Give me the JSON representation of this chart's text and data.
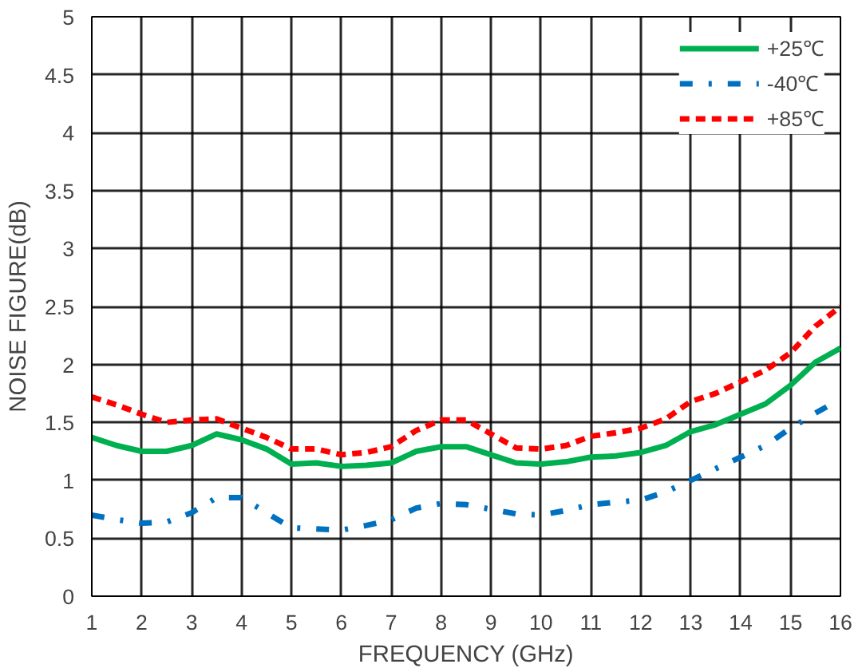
{
  "chart_data": {
    "type": "line",
    "xlabel": "FREQUENCY (GHz)",
    "ylabel": "NOISE FIGURE(dB)",
    "x": [
      1,
      1.5,
      2,
      2.5,
      3,
      3.5,
      4,
      4.5,
      5,
      5.5,
      6,
      6.5,
      7,
      7.5,
      8,
      8.5,
      9,
      9.5,
      10,
      10.5,
      11,
      11.5,
      12,
      12.5,
      13,
      13.5,
      14,
      14.5,
      15,
      15.5,
      16
    ],
    "series": [
      {
        "name": "+25℃",
        "color": "#00b050",
        "line_style": "solid",
        "values": [
          1.37,
          1.3,
          1.25,
          1.25,
          1.3,
          1.4,
          1.35,
          1.27,
          1.14,
          1.15,
          1.12,
          1.13,
          1.15,
          1.25,
          1.29,
          1.29,
          1.22,
          1.15,
          1.14,
          1.16,
          1.2,
          1.21,
          1.24,
          1.3,
          1.42,
          1.48,
          1.57,
          1.66,
          1.82,
          2.02,
          2.14
        ]
      },
      {
        "name": "-40℃",
        "color": "#0070c0",
        "line_style": "dashdot",
        "values": [
          0.7,
          0.66,
          0.63,
          0.64,
          0.72,
          0.85,
          0.85,
          0.72,
          0.59,
          0.58,
          0.57,
          0.61,
          0.66,
          0.76,
          0.8,
          0.79,
          0.75,
          0.71,
          0.7,
          0.74,
          0.79,
          0.81,
          0.83,
          0.9,
          1.0,
          1.1,
          1.2,
          1.3,
          1.45,
          1.58,
          1.7
        ]
      },
      {
        "name": "+85℃",
        "color": "#ff0000",
        "line_style": "dashed",
        "values": [
          1.72,
          1.65,
          1.57,
          1.5,
          1.52,
          1.53,
          1.45,
          1.37,
          1.27,
          1.27,
          1.22,
          1.24,
          1.29,
          1.43,
          1.52,
          1.52,
          1.4,
          1.28,
          1.27,
          1.3,
          1.38,
          1.41,
          1.45,
          1.53,
          1.68,
          1.75,
          1.85,
          1.95,
          2.1,
          2.33,
          2.5
        ]
      }
    ],
    "xlim": [
      1,
      16
    ],
    "xticks": [
      1,
      2,
      3,
      4,
      5,
      6,
      7,
      8,
      9,
      10,
      11,
      12,
      13,
      14,
      15,
      16
    ],
    "ylim": [
      0,
      5
    ],
    "yticks": [
      0,
      {
        "value": 0.5,
        "label": "0.5"
      },
      1,
      {
        "value": 1.5,
        "label": "1.5"
      },
      2,
      {
        "value": 2.5,
        "label": "2.5"
      },
      3,
      {
        "value": 3.5,
        "label": "3.5"
      },
      4,
      {
        "value": 4.5,
        "label": "4.5"
      },
      5
    ],
    "grid": true,
    "legend": "top right",
    "marker": "none"
  }
}
